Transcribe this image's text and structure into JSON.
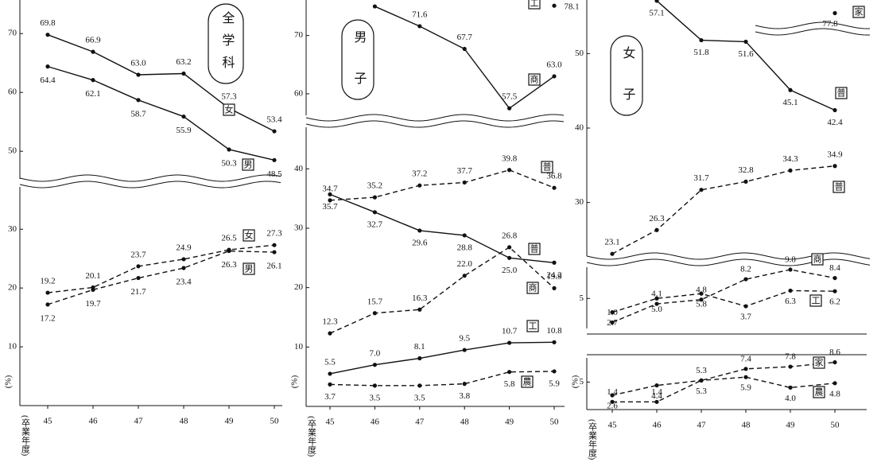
{
  "chart_data": [
    {
      "type": "line",
      "title": "全学科",
      "categories": [
        "45",
        "46",
        "47",
        "48",
        "49",
        "50"
      ],
      "xlabel": "(卒業年度)",
      "ylabel": "(%)",
      "segments": [
        {
          "ylim": [
            45.3,
            75.7
          ],
          "yticks": [
            50,
            60,
            70
          ],
          "series": [
            {
              "name": "女",
              "style": "solid",
              "color": "#111",
              "values": [
                69.8,
                66.9,
                63.0,
                63.2,
                57.3,
                53.4
              ],
              "value_labels": [
                "69.8",
                "66.9",
                "63.0",
                "63.2",
                "57.3",
                "53.4"
              ]
            },
            {
              "name": "男",
              "style": "solid",
              "color": "#111",
              "values": [
                64.4,
                62.1,
                58.7,
                55.9,
                50.3,
                48.5
              ],
              "value_labels": [
                "64.4",
                "62.1",
                "58.7",
                "55.9",
                "50.3",
                "48.5"
              ]
            }
          ]
        },
        {
          "ylim": [
            0,
            37.2
          ],
          "yticks": [
            10,
            20,
            30
          ],
          "series": [
            {
              "name": "女",
              "style": "dashed",
              "color": "#111",
              "values": [
                19.2,
                20.1,
                23.7,
                24.9,
                26.5,
                27.3
              ],
              "value_labels": [
                "19.2",
                "20.1",
                "23.7",
                "24.9",
                "26.5",
                "27.3"
              ]
            },
            {
              "name": "男",
              "style": "dashed",
              "color": "#111",
              "values": [
                17.2,
                19.7,
                21.7,
                23.4,
                26.3,
                26.1
              ],
              "value_labels": [
                "17.2",
                "19.7",
                "21.7",
                "23.4",
                "26.3",
                "26.1"
              ]
            }
          ]
        }
      ]
    },
    {
      "type": "line",
      "title": "男子",
      "categories": [
        "45",
        "46",
        "47",
        "48",
        "49",
        "50"
      ],
      "xlabel": "(卒業年度)",
      "ylabel": "(%)",
      "segments": [
        {
          "ylim": [
            77.5,
            79
          ],
          "series": [
            {
              "name": "工",
              "style": "solid",
              "color": "#111",
              "values": [
                null,
                null,
                null,
                null,
                null,
                78.1
              ],
              "value_labels": [
                null,
                null,
                null,
                null,
                null,
                "78.1"
              ]
            }
          ]
        },
        {
          "ylim": [
            56.3,
            76.1
          ],
          "yticks": [
            60,
            70
          ],
          "series": [
            {
              "name": "商",
              "style": "solid",
              "color": "#111",
              "values": [
                null,
                75.0,
                71.6,
                67.7,
                57.5,
                63.0
              ],
              "value_labels": [
                null,
                null,
                "71.6",
                "67.7",
                "57.5",
                "63.0"
              ]
            }
          ]
        },
        {
          "ylim": [
            0,
            47
          ],
          "yticks": [
            10,
            20,
            30,
            40
          ],
          "series": [
            {
              "name": "普",
              "style": "solid",
              "color": "#111",
              "values": [
                35.7,
                32.7,
                29.6,
                28.8,
                25.0,
                24.2
              ],
              "value_labels": [
                "35.7",
                "32.7",
                "29.6",
                "28.8",
                "25.0",
                "24.2"
              ]
            },
            {
              "name": "普",
              "style": "dashed",
              "color": "#111",
              "values": [
                34.7,
                35.2,
                37.2,
                37.7,
                39.8,
                36.8
              ],
              "value_labels": [
                "34.7",
                "35.2",
                "37.2",
                "37.7",
                "39.8",
                "36.8"
              ]
            },
            {
              "name": "商",
              "style": "dashed",
              "color": "#111",
              "values": [
                12.3,
                15.7,
                16.3,
                22.0,
                26.8,
                19.9
              ],
              "value_labels": [
                "12.3",
                "15.7",
                "16.3",
                "22.0",
                "26.8",
                "19.9"
              ]
            },
            {
              "name": "工",
              "style": "solid",
              "color": "#111",
              "values": [
                5.5,
                7.0,
                8.1,
                9.5,
                10.7,
                10.8
              ],
              "value_labels": [
                "5.5",
                "7.0",
                "8.1",
                "9.5",
                "10.7",
                "10.8"
              ]
            },
            {
              "name": "農",
              "style": "dashed",
              "color": "#111",
              "values": [
                3.7,
                3.5,
                3.5,
                3.8,
                5.8,
                5.9
              ],
              "value_labels": [
                "3.7",
                "3.5",
                "3.5",
                "3.8",
                "5.8",
                "5.9"
              ]
            }
          ]
        }
      ]
    },
    {
      "type": "line",
      "title": "女子",
      "categories": [
        "45",
        "46",
        "47",
        "48",
        "49",
        "50"
      ],
      "xlabel": "(卒業年度)",
      "ylabel": "(%)",
      "segments": [
        {
          "ylim": [
            76,
            80
          ],
          "series": [
            {
              "name": "家",
              "style": "solid",
              "color": "#111",
              "values": [
                null,
                null,
                null,
                null,
                null,
                77.8
              ],
              "value_labels": [
                null,
                null,
                null,
                null,
                null,
                "77.8"
              ]
            }
          ]
        },
        {
          "ylim": [
            22.8,
            57.2
          ],
          "yticks": [
            30,
            40,
            50
          ],
          "series": [
            {
              "name": "普",
              "style": "solid",
              "color": "#111",
              "values": [
                null,
                57.1,
                51.8,
                51.6,
                45.1,
                42.4
              ],
              "value_labels": [
                null,
                "57.1",
                "51.8",
                "51.6",
                "45.1",
                "42.4"
              ]
            },
            {
              "name": "普",
              "style": "dashed",
              "color": "#111",
              "values": [
                23.1,
                26.3,
                31.7,
                32.8,
                34.3,
                34.9
              ],
              "value_labels": [
                "23.1",
                "26.3",
                "31.7",
                "32.8",
                "34.3",
                "34.9"
              ]
            }
          ]
        },
        {
          "ylim": [
            0,
            10.2
          ],
          "yticks": [
            5
          ],
          "series": [
            {
              "name": "商",
              "style": "dashed",
              "color": "#111",
              "values": [
                1.0,
                4.1,
                4.8,
                8.2,
                9.8,
                8.4
              ],
              "value_labels": [
                "1.0",
                "4.1",
                "4.8",
                "8.2",
                "9.8",
                "8.4"
              ]
            },
            {
              "name": "工",
              "style": "dashed",
              "color": "#111",
              "values": [
                2.7,
                5.0,
                5.8,
                3.7,
                6.3,
                6.2
              ],
              "value_labels": [
                "2.7",
                "5.0",
                "5.8",
                "3.7",
                "6.3",
                "6.2"
              ]
            }
          ]
        },
        {
          "ylim": [
            0,
            9.4
          ],
          "yticks": [
            5
          ],
          "series": [
            {
              "name": "家",
              "style": "dashed",
              "color": "#111",
              "values": [
                1.4,
                1.4,
                5.3,
                7.4,
                7.8,
                8.6
              ],
              "value_labels": [
                "1.4",
                "1.4",
                "5.3",
                "7.4",
                "7.8",
                "8.6"
              ]
            },
            {
              "name": "農",
              "style": "dashed",
              "color": "#111",
              "values": [
                2.6,
                4.4,
                5.3,
                5.9,
                4.0,
                4.8
              ],
              "value_labels": [
                "2.6",
                "4.4",
                "5.3",
                "5.9",
                "4.0",
                "4.8"
              ]
            }
          ]
        }
      ]
    }
  ]
}
